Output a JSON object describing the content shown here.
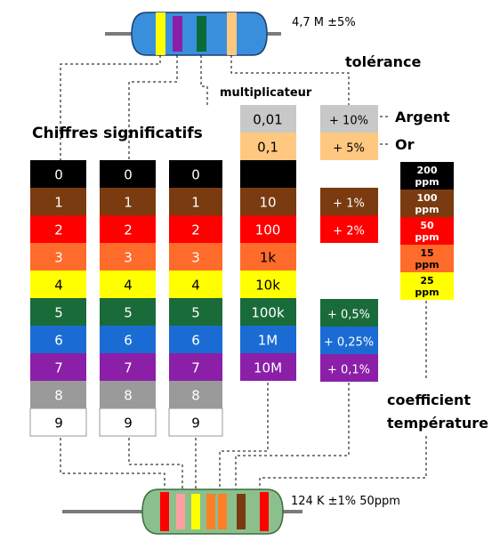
{
  "resistor_top": {
    "label": "4,7 M ±5%",
    "body_color": "#3a8fdc",
    "lead_color": "#7a7a7a",
    "bands": [
      "#ffff00",
      "#8b1fa8",
      "#0a6b3a",
      "#ffc880"
    ]
  },
  "resistor_bottom": {
    "label": "124 K ±1% 50ppm",
    "body_color": "#8bbf8b",
    "lead_color": "#7a7a7a",
    "bands": [
      "#ff0000",
      "#ffa0a0",
      "#ffff00",
      "#ff7f27",
      "#ff7f27",
      "#7a3b10",
      "#ff0000"
    ]
  },
  "labels": {
    "significant": "Chiffres significatifs",
    "multiplier": "multiplicateur",
    "tolerance": "tolérance",
    "silver": "Argent",
    "gold": "Or",
    "temperature_line1": "coefficient",
    "temperature_line2": "température"
  },
  "digit_colors": [
    {
      "digit": "0",
      "color": "#000000",
      "text": "#ffffff"
    },
    {
      "digit": "1",
      "color": "#7a3b10",
      "text": "#ffffff"
    },
    {
      "digit": "2",
      "color": "#ff0000",
      "text": "#ffffff"
    },
    {
      "digit": "3",
      "color": "#ff6b2b",
      "text": "#ffffff"
    },
    {
      "digit": "4",
      "color": "#ffff00",
      "text": "#000000"
    },
    {
      "digit": "5",
      "color": "#1a6b3a",
      "text": "#ffffff"
    },
    {
      "digit": "6",
      "color": "#1a6cd4",
      "text": "#ffffff"
    },
    {
      "digit": "7",
      "color": "#8b1fa8",
      "text": "#ffffff"
    },
    {
      "digit": "8",
      "color": "#9a9a9a",
      "text": "#ffffff"
    },
    {
      "digit": "9",
      "color": "#ffffff",
      "text": "#000000"
    }
  ],
  "multiplier_colors": [
    {
      "value": "0,01",
      "color": "#c8c8c8",
      "text": "#000000"
    },
    {
      "value": "0,1",
      "color": "#ffc880",
      "text": "#000000"
    },
    {
      "value": "",
      "color": "#000000",
      "text": "#ffffff"
    },
    {
      "value": "10",
      "color": "#7a3b10",
      "text": "#ffffff"
    },
    {
      "value": "100",
      "color": "#ff0000",
      "text": "#ffffff"
    },
    {
      "value": "1k",
      "color": "#ff6b2b",
      "text": "#000000"
    },
    {
      "value": "10k",
      "color": "#ffff00",
      "text": "#000000"
    },
    {
      "value": "100k",
      "color": "#1a6b3a",
      "text": "#ffffff"
    },
    {
      "value": "1M",
      "color": "#1a6cd4",
      "text": "#ffffff"
    },
    {
      "value": "10M",
      "color": "#8b1fa8",
      "text": "#ffffff"
    }
  ],
  "tolerance_colors": [
    {
      "value": "+ 10%",
      "color": "#c8c8c8",
      "text": "#000000"
    },
    {
      "value": "+ 5%",
      "color": "#ffc880",
      "text": "#000000"
    },
    {
      "value": "+ 1%",
      "color": "#7a3b10",
      "text": "#ffffff"
    },
    {
      "value": "+ 2%",
      "color": "#ff0000",
      "text": "#ffffff"
    },
    {
      "value": "+ 0,5%",
      "color": "#1a6b3a",
      "text": "#ffffff"
    },
    {
      "value": "+ 0,25%",
      "color": "#1a6cd4",
      "text": "#ffffff"
    },
    {
      "value": "+ 0,1%",
      "color": "#8b1fa8",
      "text": "#ffffff"
    }
  ],
  "temperature_colors": [
    {
      "value": "200",
      "unit": "ppm",
      "color": "#000000",
      "text": "#ffffff"
    },
    {
      "value": "100",
      "unit": "ppm",
      "color": "#7a3b10",
      "text": "#ffffff"
    },
    {
      "value": "50",
      "unit": "ppm",
      "color": "#ff0000",
      "text": "#ffffff"
    },
    {
      "value": "15",
      "unit": "ppm",
      "color": "#ff6b2b",
      "text": "#000000"
    },
    {
      "value": "25",
      "unit": "ppm",
      "color": "#ffff00",
      "text": "#000000"
    }
  ]
}
